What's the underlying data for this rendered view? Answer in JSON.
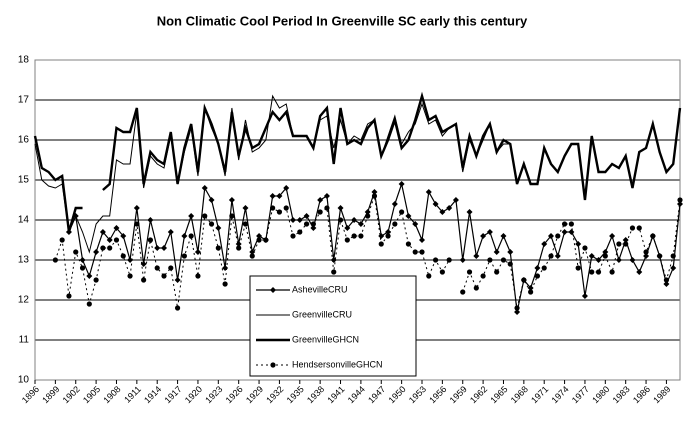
{
  "chart_data": {
    "type": "line",
    "title": "Non Climatic Cool Period In Greenville SC early this century",
    "categories": [
      "1896",
      null,
      null,
      "1899",
      null,
      null,
      "1902",
      null,
      null,
      "1905",
      null,
      null,
      "1908",
      null,
      null,
      "1911",
      null,
      null,
      "1914",
      null,
      null,
      "1917",
      null,
      null,
      "1920",
      null,
      null,
      "1923",
      null,
      null,
      "1926",
      null,
      null,
      "1929",
      null,
      null,
      "1932",
      null,
      null,
      "1935",
      null,
      null,
      "1938",
      null,
      null,
      "1941",
      null,
      null,
      "1944",
      null,
      null,
      "1947",
      null,
      null,
      "1950",
      null,
      null,
      "1953",
      null,
      null,
      "1956",
      null,
      null,
      "1959",
      null,
      null,
      "1962",
      null,
      null,
      "1965",
      null,
      null,
      "1968",
      null,
      null,
      "1971",
      null,
      null,
      "1974",
      null,
      null,
      "1977",
      null,
      null,
      "1980",
      null,
      null,
      "1983",
      null,
      null,
      "1986",
      null,
      null,
      "1989",
      null,
      null
    ],
    "ylim": [
      10,
      18
    ],
    "yticks": [
      10,
      11,
      12,
      13,
      14,
      15,
      16,
      17,
      18
    ],
    "grid": true,
    "series": [
      {
        "name": "AshevilleCRU",
        "color": "#000000",
        "marker": "diamond",
        "values": [
          null,
          null,
          null,
          null,
          null,
          13.7,
          14.1,
          13.0,
          12.6,
          13.2,
          13.7,
          13.5,
          13.8,
          13.6,
          13.0,
          14.3,
          12.9,
          14.0,
          13.3,
          13.3,
          13.7,
          12.5,
          13.6,
          14.1,
          13.2,
          14.8,
          14.5,
          13.8,
          12.8,
          14.5,
          13.4,
          14.3,
          13.2,
          13.6,
          13.5,
          14.6,
          14.6,
          14.8,
          14.0,
          14.0,
          14.1,
          13.8,
          14.5,
          14.6,
          13.0,
          14.3,
          13.8,
          14.0,
          13.9,
          14.2,
          14.7,
          13.6,
          13.7,
          14.4,
          14.9,
          14.1,
          13.9,
          13.5,
          14.7,
          14.4,
          14.2,
          14.3,
          14.5,
          13.0,
          14.2,
          13.1,
          13.6,
          13.7,
          13.2,
          13.6,
          13.2,
          11.7,
          12.5,
          12.3,
          12.8,
          13.4,
          13.6,
          13.1,
          13.7,
          13.7,
          13.4,
          12.1,
          13.1,
          13.0,
          13.2,
          13.6,
          13.0,
          13.5,
          13.0,
          12.7,
          13.1,
          13.6,
          13.1,
          12.4,
          12.8,
          14.4
        ]
      },
      {
        "name": "GreenvilleCRU",
        "color": "#000000",
        "values": [
          15.9,
          15.0,
          14.85,
          14.8,
          14.9,
          13.7,
          14.1,
          13.7,
          13.2,
          13.9,
          14.1,
          14.1,
          15.5,
          15.4,
          15.4,
          16.7,
          14.8,
          15.6,
          15.4,
          15.3,
          16.1,
          14.9,
          15.7,
          16.3,
          15.1,
          16.8,
          16.3,
          15.9,
          15.1,
          16.8,
          15.5,
          16.5,
          15.7,
          15.8,
          16.0,
          17.1,
          16.8,
          16.9,
          16.1,
          16.1,
          16.1,
          15.8,
          16.5,
          16.6,
          15.8,
          16.5,
          15.9,
          16.1,
          16.0,
          16.4,
          16.5,
          15.6,
          16.1,
          16.6,
          15.9,
          16.2,
          16.4,
          16.9,
          16.4,
          16.5,
          16.1,
          16.3,
          16.4,
          15.2,
          16.0,
          15.6,
          16.0,
          16.4,
          15.7,
          15.9,
          15.9,
          14.9,
          15.4,
          14.9,
          14.9,
          15.8,
          15.4,
          15.2,
          15.6,
          15.9,
          15.9,
          14.5,
          16.1,
          15.2,
          15.2,
          15.4,
          15.3,
          15.6,
          14.8,
          15.7,
          15.8,
          16.4,
          15.7,
          15.2,
          15.4,
          16.8
        ]
      },
      {
        "name": "GreenvilleGHCN",
        "color": "#000000",
        "values": [
          16.1,
          15.3,
          15.2,
          15.0,
          15.1,
          13.7,
          14.3,
          14.3,
          null,
          null,
          14.75,
          14.9,
          16.3,
          16.2,
          16.2,
          16.8,
          14.9,
          15.7,
          15.5,
          15.4,
          16.2,
          14.9,
          15.8,
          16.4,
          15.2,
          16.8,
          16.4,
          15.9,
          15.2,
          16.7,
          15.6,
          16.3,
          15.8,
          15.9,
          16.3,
          16.7,
          16.5,
          16.7,
          16.1,
          16.1,
          16.1,
          15.8,
          16.6,
          16.8,
          15.4,
          16.8,
          15.9,
          16.0,
          15.9,
          16.3,
          16.5,
          15.6,
          16.0,
          16.5,
          15.8,
          16.0,
          16.5,
          17.1,
          16.5,
          16.6,
          16.2,
          16.3,
          16.4,
          15.3,
          16.1,
          15.6,
          16.1,
          16.4,
          15.7,
          16.0,
          15.9,
          14.9,
          15.4,
          14.9,
          14.9,
          15.8,
          15.4,
          15.2,
          15.6,
          15.9,
          15.9,
          14.5,
          16.1,
          15.2,
          15.2,
          15.4,
          15.3,
          15.6,
          14.8,
          15.7,
          15.8,
          16.4,
          15.7,
          15.2,
          15.4,
          16.8
        ]
      },
      {
        "name": "HendsersonvilleGHCN",
        "color": "#000000",
        "marker": "circle",
        "dash": true,
        "values": [
          null,
          null,
          null,
          13.0,
          13.5,
          12.1,
          13.2,
          12.8,
          11.9,
          12.5,
          13.3,
          13.3,
          13.5,
          13.1,
          12.6,
          13.9,
          12.5,
          13.5,
          12.8,
          12.6,
          12.8,
          11.8,
          13.1,
          13.6,
          12.6,
          14.1,
          13.9,
          13.3,
          12.4,
          14.1,
          13.3,
          13.9,
          13.1,
          13.5,
          13.5,
          14.3,
          14.2,
          14.3,
          13.6,
          13.7,
          13.9,
          13.9,
          14.2,
          14.3,
          12.7,
          14.0,
          13.5,
          13.6,
          13.6,
          14.1,
          14.6,
          13.4,
          13.6,
          13.9,
          14.2,
          13.4,
          13.2,
          13.2,
          12.6,
          13.0,
          12.7,
          13.0,
          null,
          12.2,
          12.7,
          12.3,
          12.6,
          13.0,
          12.7,
          13.0,
          12.9,
          11.8,
          12.5,
          12.2,
          12.6,
          12.8,
          13.1,
          13.6,
          13.9,
          13.9,
          12.8,
          13.3,
          12.7,
          12.7,
          13.1,
          12.7,
          13.4,
          13.4,
          13.8,
          13.8,
          13.2,
          13.6,
          13.1,
          12.5,
          13.1,
          14.5
        ]
      }
    ]
  }
}
